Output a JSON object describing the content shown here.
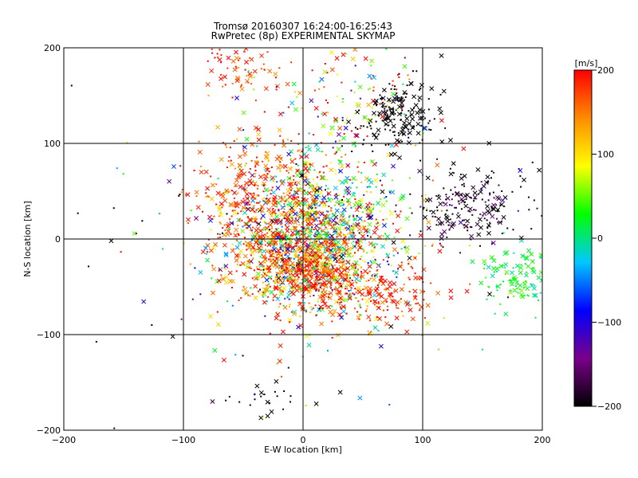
{
  "chart_data": {
    "type": "scatter",
    "title": "Tromsø 20160307 16:24:00-16:25:43",
    "subtitle": "RwPretec (8p) EXPERIMENTAL SKYMAP",
    "xlabel": "E-W location [km]",
    "ylabel": "N-S location [km]",
    "xlim": [
      -200,
      200
    ],
    "ylim": [
      -200,
      200
    ],
    "xticks": [
      "-200",
      "-100",
      "0",
      "100",
      "200"
    ],
    "yticks": [
      "-200",
      "-100",
      "0",
      "100",
      "200"
    ],
    "grid": true,
    "markers": [
      "x",
      "dot"
    ],
    "colorbar": {
      "label": "[m/s]",
      "range": [
        -200,
        200
      ],
      "ticks": [
        "200",
        "100",
        "0",
        "-100",
        "-200"
      ],
      "colormap": [
        "#000000",
        "#7a008a",
        "#0000ff",
        "#00c8ff",
        "#00ff00",
        "#ffff00",
        "#ff8c00",
        "#ff0000"
      ]
    },
    "clusters": [
      {
        "x": 10,
        "y": 5,
        "sx": 35,
        "sy": 40,
        "n": 1400,
        "v": 60,
        "vs": 120
      },
      {
        "x": 5,
        "y": -30,
        "sx": 25,
        "sy": 20,
        "n": 500,
        "v": 170,
        "vs": 40
      },
      {
        "x": -40,
        "y": 40,
        "sx": 25,
        "sy": 35,
        "n": 350,
        "v": 175,
        "vs": 30
      },
      {
        "x": 80,
        "y": 130,
        "sx": 18,
        "sy": 18,
        "n": 180,
        "v": -200,
        "vs": 5
      },
      {
        "x": 140,
        "y": 35,
        "sx": 25,
        "sy": 20,
        "n": 200,
        "v": -190,
        "vs": 25
      },
      {
        "x": 180,
        "y": -40,
        "sx": 15,
        "sy": 15,
        "n": 120,
        "v": 20,
        "vs": 20
      },
      {
        "x": -50,
        "y": 180,
        "sx": 20,
        "sy": 15,
        "n": 70,
        "v": 180,
        "vs": 30
      },
      {
        "x": 60,
        "y": -60,
        "sx": 30,
        "sy": 15,
        "n": 180,
        "v": 180,
        "vs": 30
      },
      {
        "x": 40,
        "y": 150,
        "sx": 30,
        "sy": 30,
        "n": 120,
        "v": 100,
        "vs": 120
      },
      {
        "x": -30,
        "y": -165,
        "sx": 15,
        "sy": 10,
        "n": 25,
        "v": -200,
        "vs": 20
      },
      {
        "x": 0,
        "y": 0,
        "sx": 110,
        "sy": 110,
        "n": 170,
        "v": 0,
        "vs": 180
      }
    ]
  }
}
